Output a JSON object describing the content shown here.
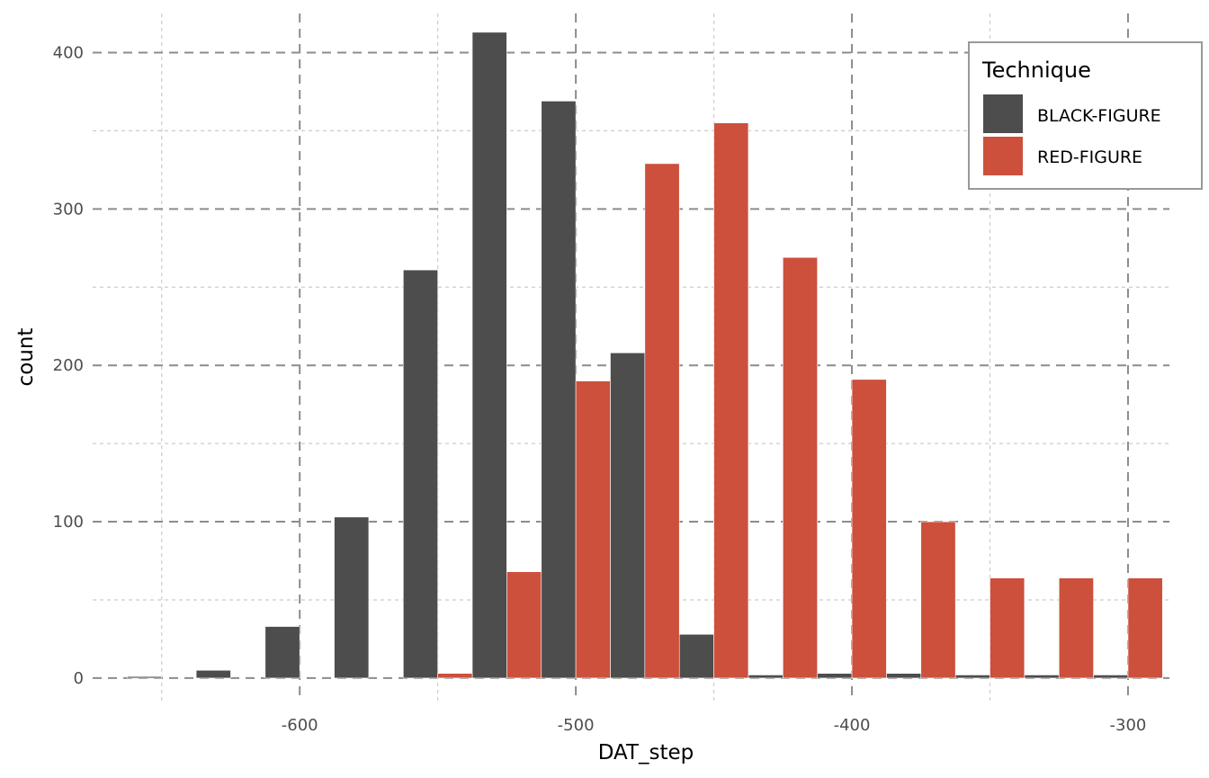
{
  "chart_data": {
    "type": "bar",
    "xlabel": "DAT_step",
    "ylabel": "count",
    "xlim": [
      -675,
      -285
    ],
    "ylim": [
      -15,
      425
    ],
    "x_ticks": [
      -600,
      -500,
      -400,
      -300
    ],
    "y_ticks": [
      0,
      100,
      200,
      300,
      400
    ],
    "x_minor": [
      -650,
      -550,
      -450,
      -350
    ],
    "y_minor": [
      50,
      150,
      250,
      350
    ],
    "bar_width": 12.5,
    "grid": true,
    "legend": {
      "title": "Technique",
      "position": "top-right"
    },
    "series": [
      {
        "name": "BLACK-FIGURE",
        "color": "#4d4d4d",
        "x": [
          -656.25,
          -631.25,
          -606.25,
          -581.25,
          -556.25,
          -531.25,
          -506.25,
          -481.25,
          -456.25,
          -431.25,
          -406.25,
          -381.25,
          -356.25,
          -331.25,
          -306.25
        ],
        "values": [
          1,
          5,
          33,
          103,
          261,
          413,
          369,
          208,
          28,
          2,
          3,
          3,
          2,
          2,
          2
        ]
      },
      {
        "name": "RED-FIGURE",
        "color": "#cc503c",
        "x": [
          -543.75,
          -518.75,
          -493.75,
          -468.75,
          -443.75,
          -418.75,
          -393.75,
          -368.75,
          -343.75,
          -318.75,
          -293.75
        ],
        "values": [
          3,
          68,
          190,
          329,
          355,
          269,
          191,
          100,
          64,
          64,
          64
        ]
      }
    ]
  }
}
